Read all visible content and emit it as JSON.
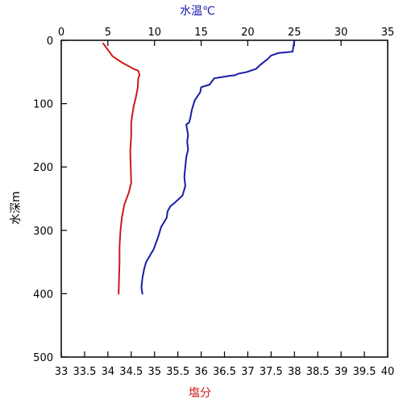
{
  "chart_data": {
    "type": "line",
    "title": "",
    "ylabel": "水深m",
    "y_reversed": true,
    "grid": false,
    "legend": "none",
    "ylim": [
      500,
      0
    ],
    "yticks": [
      0,
      100,
      200,
      300,
      400,
      500
    ],
    "top_axis": {
      "label": "水温℃",
      "color": "#1a1aa8",
      "lim": [
        0,
        35
      ],
      "ticks": [
        0,
        5,
        10,
        15,
        20,
        25,
        30,
        35
      ]
    },
    "bottom_axis": {
      "label": "塩分",
      "color": "#cc1a1a",
      "lim": [
        33,
        40
      ],
      "ticks": [
        "33",
        "33.5",
        "34",
        "34.5",
        "35",
        "35.5",
        "36",
        "36.5",
        "37",
        "37.5",
        "38",
        "38.5",
        "39",
        "39.5",
        "40"
      ]
    },
    "series": [
      {
        "quantity": "temperature",
        "axis": "top",
        "color": "#1a1aa8",
        "points": [
          [
            25.0,
            0
          ],
          [
            24.8,
            18
          ],
          [
            23.3,
            20
          ],
          [
            22.5,
            24
          ],
          [
            22.1,
            30
          ],
          [
            21.4,
            38
          ],
          [
            20.9,
            45
          ],
          [
            19.9,
            50
          ],
          [
            18.9,
            53
          ],
          [
            18.7,
            55
          ],
          [
            18.1,
            56
          ],
          [
            16.4,
            60
          ],
          [
            16.0,
            68
          ],
          [
            15.9,
            70
          ],
          [
            15.0,
            74
          ],
          [
            14.9,
            82
          ],
          [
            14.3,
            95
          ],
          [
            14.0,
            110
          ],
          [
            13.8,
            125
          ],
          [
            13.7,
            130
          ],
          [
            13.4,
            133
          ],
          [
            13.6,
            150
          ],
          [
            13.5,
            160
          ],
          [
            13.6,
            172
          ],
          [
            13.4,
            185
          ],
          [
            13.3,
            200
          ],
          [
            13.2,
            215
          ],
          [
            13.3,
            230
          ],
          [
            13.0,
            245
          ],
          [
            12.2,
            256
          ],
          [
            11.7,
            262
          ],
          [
            11.4,
            270
          ],
          [
            11.3,
            280
          ],
          [
            10.7,
            295
          ],
          [
            10.4,
            310
          ],
          [
            9.9,
            330
          ],
          [
            9.1,
            350
          ],
          [
            8.9,
            360
          ],
          [
            8.7,
            375
          ],
          [
            8.6,
            390
          ],
          [
            8.7,
            400
          ]
        ]
      },
      {
        "quantity": "salinity",
        "axis": "bottom",
        "color": "#cc1a1a",
        "points": [
          [
            33.9,
            5
          ],
          [
            33.93,
            8
          ],
          [
            34.05,
            20
          ],
          [
            34.1,
            25
          ],
          [
            34.3,
            35
          ],
          [
            34.55,
            45
          ],
          [
            34.65,
            48
          ],
          [
            34.68,
            55
          ],
          [
            34.65,
            60
          ],
          [
            34.64,
            75
          ],
          [
            34.6,
            90
          ],
          [
            34.55,
            105
          ],
          [
            34.52,
            120
          ],
          [
            34.5,
            130
          ],
          [
            34.5,
            150
          ],
          [
            34.48,
            175
          ],
          [
            34.49,
            200
          ],
          [
            34.5,
            225
          ],
          [
            34.45,
            240
          ],
          [
            34.35,
            260
          ],
          [
            34.3,
            280
          ],
          [
            34.27,
            300
          ],
          [
            34.25,
            325
          ],
          [
            34.25,
            350
          ],
          [
            34.24,
            375
          ],
          [
            34.23,
            400
          ]
        ]
      }
    ]
  }
}
